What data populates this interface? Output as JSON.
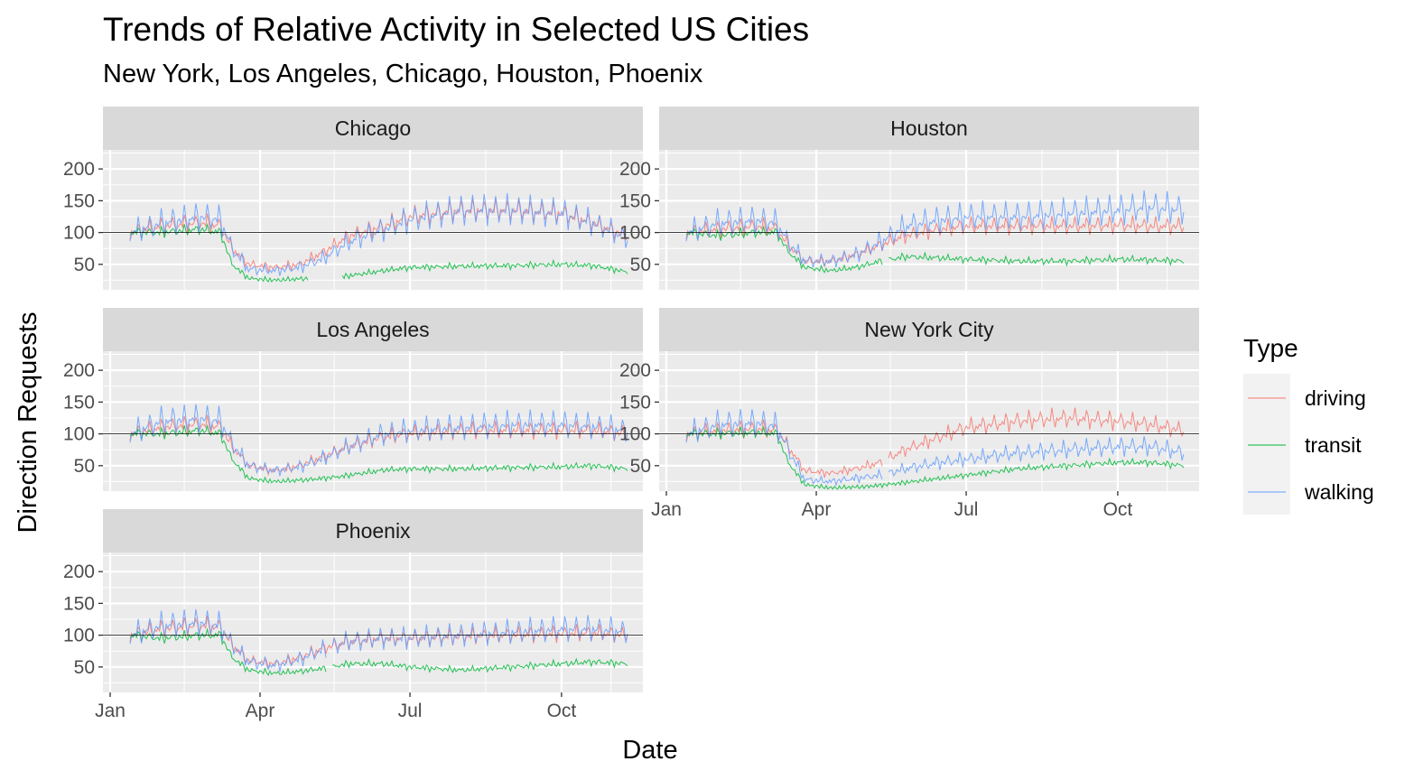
{
  "title": "Trends of Relative Activity in Selected US Cities",
  "subtitle": "New York, Los Angeles, Chicago, Houston, Phoenix",
  "chart_data": {
    "type": "line",
    "facets": [
      "Chicago",
      "Houston",
      "Los Angeles",
      "New York City",
      "Phoenix"
    ],
    "xlabel": "Date",
    "ylabel": "Direction Requests",
    "x_ticks": [
      "Jan",
      "Apr",
      "Jul",
      "Oct"
    ],
    "y_ticks": [
      50,
      100,
      150,
      200
    ],
    "ylim": [
      10,
      230
    ],
    "xlim": [
      "2020-01-01",
      "2020-11-15"
    ],
    "reference_line": 100,
    "legend": {
      "title": "Type",
      "position": "right",
      "entries": [
        "driving",
        "transit",
        "walking"
      ]
    },
    "colors": {
      "driving": "#F8766D",
      "transit": "#00BA38",
      "walking": "#619CFF"
    },
    "grid": true,
    "panel_background": "#EBEBEB",
    "strip_background": "#D9D9D9",
    "weekly_oscillation": true,
    "series_by_city": {
      "Chicago": {
        "driving": [
          [
            "2020-01-13",
            100
          ],
          [
            "2020-02-01",
            110
          ],
          [
            "2020-02-25",
            115
          ],
          [
            "2020-03-08",
            110
          ],
          [
            "2020-03-15",
            75
          ],
          [
            "2020-03-25",
            50
          ],
          [
            "2020-04-10",
            45
          ],
          [
            "2020-04-25",
            50
          ],
          [
            "2020-05-10",
            70
          ],
          [
            "2020-05-25",
            95
          ],
          [
            "2020-06-15",
            110
          ],
          [
            "2020-07-01",
            125
          ],
          [
            "2020-08-01",
            135
          ],
          [
            "2020-09-01",
            135
          ],
          [
            "2020-10-01",
            130
          ],
          [
            "2020-10-20",
            115
          ],
          [
            "2020-11-10",
            95
          ]
        ],
        "transit": [
          [
            "2020-01-13",
            100
          ],
          [
            "2020-02-01",
            100
          ],
          [
            "2020-02-25",
            105
          ],
          [
            "2020-03-08",
            100
          ],
          [
            "2020-03-15",
            50
          ],
          [
            "2020-03-25",
            28
          ],
          [
            "2020-04-10",
            25
          ],
          [
            "2020-05-01",
            28
          ],
          [
            "2020-05-20",
            30
          ],
          [
            "2020-06-15",
            40
          ],
          [
            "2020-07-01",
            45
          ],
          [
            "2020-08-01",
            47
          ],
          [
            "2020-09-01",
            48
          ],
          [
            "2020-10-01",
            50
          ],
          [
            "2020-10-20",
            48
          ],
          [
            "2020-11-10",
            38
          ]
        ],
        "walking": [
          [
            "2020-01-13",
            100
          ],
          [
            "2020-02-01",
            115
          ],
          [
            "2020-02-25",
            125
          ],
          [
            "2020-03-08",
            120
          ],
          [
            "2020-03-15",
            75
          ],
          [
            "2020-03-25",
            42
          ],
          [
            "2020-04-10",
            40
          ],
          [
            "2020-04-25",
            45
          ],
          [
            "2020-05-10",
            60
          ],
          [
            "2020-05-25",
            85
          ],
          [
            "2020-06-15",
            105
          ],
          [
            "2020-07-01",
            120
          ],
          [
            "2020-08-01",
            135
          ],
          [
            "2020-09-01",
            135
          ],
          [
            "2020-10-01",
            130
          ],
          [
            "2020-10-20",
            115
          ],
          [
            "2020-11-10",
            90
          ]
        ]
      },
      "Houston": {
        "driving": [
          [
            "2020-01-13",
            100
          ],
          [
            "2020-02-01",
            105
          ],
          [
            "2020-02-25",
            110
          ],
          [
            "2020-03-08",
            105
          ],
          [
            "2020-03-15",
            80
          ],
          [
            "2020-03-25",
            55
          ],
          [
            "2020-04-10",
            55
          ],
          [
            "2020-04-25",
            65
          ],
          [
            "2020-05-10",
            80
          ],
          [
            "2020-05-25",
            95
          ],
          [
            "2020-06-15",
            105
          ],
          [
            "2020-07-01",
            110
          ],
          [
            "2020-08-01",
            110
          ],
          [
            "2020-09-01",
            110
          ],
          [
            "2020-10-01",
            112
          ],
          [
            "2020-10-20",
            110
          ],
          [
            "2020-11-10",
            110
          ]
        ],
        "transit": [
          [
            "2020-01-13",
            100
          ],
          [
            "2020-02-01",
            95
          ],
          [
            "2020-02-25",
            100
          ],
          [
            "2020-03-08",
            100
          ],
          [
            "2020-03-15",
            70
          ],
          [
            "2020-03-25",
            45
          ],
          [
            "2020-04-10",
            40
          ],
          [
            "2020-04-25",
            45
          ],
          [
            "2020-05-10",
            55
          ],
          [
            "2020-05-25",
            62
          ],
          [
            "2020-06-15",
            60
          ],
          [
            "2020-07-01",
            58
          ],
          [
            "2020-08-01",
            55
          ],
          [
            "2020-09-01",
            55
          ],
          [
            "2020-10-01",
            58
          ],
          [
            "2020-10-20",
            57
          ],
          [
            "2020-11-10",
            55
          ]
        ],
        "walking": [
          [
            "2020-01-13",
            100
          ],
          [
            "2020-02-01",
            115
          ],
          [
            "2020-02-25",
            120
          ],
          [
            "2020-03-08",
            115
          ],
          [
            "2020-03-15",
            85
          ],
          [
            "2020-03-25",
            55
          ],
          [
            "2020-04-10",
            55
          ],
          [
            "2020-04-25",
            65
          ],
          [
            "2020-05-10",
            85
          ],
          [
            "2020-05-25",
            110
          ],
          [
            "2020-06-15",
            120
          ],
          [
            "2020-07-01",
            125
          ],
          [
            "2020-08-01",
            125
          ],
          [
            "2020-09-01",
            130
          ],
          [
            "2020-10-01",
            135
          ],
          [
            "2020-10-20",
            140
          ],
          [
            "2020-11-10",
            135
          ]
        ]
      },
      "Los Angeles": {
        "driving": [
          [
            "2020-01-13",
            100
          ],
          [
            "2020-02-01",
            110
          ],
          [
            "2020-02-25",
            115
          ],
          [
            "2020-03-08",
            110
          ],
          [
            "2020-03-15",
            80
          ],
          [
            "2020-03-25",
            50
          ],
          [
            "2020-04-10",
            42
          ],
          [
            "2020-04-25",
            50
          ],
          [
            "2020-05-10",
            65
          ],
          [
            "2020-05-25",
            80
          ],
          [
            "2020-06-15",
            95
          ],
          [
            "2020-07-01",
            100
          ],
          [
            "2020-08-01",
            105
          ],
          [
            "2020-09-01",
            105
          ],
          [
            "2020-10-01",
            105
          ],
          [
            "2020-10-20",
            105
          ],
          [
            "2020-11-10",
            100
          ]
        ],
        "transit": [
          [
            "2020-01-13",
            100
          ],
          [
            "2020-02-01",
            100
          ],
          [
            "2020-02-25",
            105
          ],
          [
            "2020-03-08",
            100
          ],
          [
            "2020-03-15",
            60
          ],
          [
            "2020-03-25",
            30
          ],
          [
            "2020-04-10",
            25
          ],
          [
            "2020-05-01",
            28
          ],
          [
            "2020-05-20",
            33
          ],
          [
            "2020-06-15",
            43
          ],
          [
            "2020-07-01",
            45
          ],
          [
            "2020-08-01",
            45
          ],
          [
            "2020-09-01",
            47
          ],
          [
            "2020-10-01",
            48
          ],
          [
            "2020-10-20",
            50
          ],
          [
            "2020-11-10",
            45
          ]
        ],
        "walking": [
          [
            "2020-01-13",
            100
          ],
          [
            "2020-02-01",
            120
          ],
          [
            "2020-02-25",
            125
          ],
          [
            "2020-03-08",
            120
          ],
          [
            "2020-03-15",
            85
          ],
          [
            "2020-03-25",
            50
          ],
          [
            "2020-04-10",
            42
          ],
          [
            "2020-04-25",
            48
          ],
          [
            "2020-05-10",
            62
          ],
          [
            "2020-05-25",
            80
          ],
          [
            "2020-06-15",
            100
          ],
          [
            "2020-07-01",
            105
          ],
          [
            "2020-08-01",
            110
          ],
          [
            "2020-09-01",
            115
          ],
          [
            "2020-10-01",
            115
          ],
          [
            "2020-10-20",
            112
          ],
          [
            "2020-11-10",
            105
          ]
        ]
      },
      "New York City": {
        "driving": [
          [
            "2020-01-13",
            100
          ],
          [
            "2020-02-01",
            105
          ],
          [
            "2020-02-25",
            108
          ],
          [
            "2020-03-08",
            105
          ],
          [
            "2020-03-15",
            80
          ],
          [
            "2020-03-25",
            42
          ],
          [
            "2020-04-10",
            38
          ],
          [
            "2020-04-25",
            45
          ],
          [
            "2020-05-10",
            55
          ],
          [
            "2020-05-25",
            75
          ],
          [
            "2020-06-15",
            95
          ],
          [
            "2020-07-01",
            110
          ],
          [
            "2020-08-01",
            120
          ],
          [
            "2020-09-01",
            125
          ],
          [
            "2020-10-01",
            120
          ],
          [
            "2020-10-20",
            115
          ],
          [
            "2020-11-10",
            105
          ]
        ],
        "transit": [
          [
            "2020-01-13",
            100
          ],
          [
            "2020-02-01",
            100
          ],
          [
            "2020-02-25",
            102
          ],
          [
            "2020-03-08",
            100
          ],
          [
            "2020-03-15",
            55
          ],
          [
            "2020-03-25",
            20
          ],
          [
            "2020-04-10",
            15
          ],
          [
            "2020-05-01",
            17
          ],
          [
            "2020-05-20",
            22
          ],
          [
            "2020-06-15",
            30
          ],
          [
            "2020-07-01",
            35
          ],
          [
            "2020-08-01",
            45
          ],
          [
            "2020-09-01",
            50
          ],
          [
            "2020-10-01",
            55
          ],
          [
            "2020-10-20",
            55
          ],
          [
            "2020-11-10",
            50
          ]
        ],
        "walking": [
          [
            "2020-01-13",
            100
          ],
          [
            "2020-02-01",
            115
          ],
          [
            "2020-02-25",
            118
          ],
          [
            "2020-03-08",
            112
          ],
          [
            "2020-03-15",
            75
          ],
          [
            "2020-03-25",
            28
          ],
          [
            "2020-04-10",
            25
          ],
          [
            "2020-04-25",
            30
          ],
          [
            "2020-05-10",
            35
          ],
          [
            "2020-05-25",
            45
          ],
          [
            "2020-06-15",
            55
          ],
          [
            "2020-07-01",
            60
          ],
          [
            "2020-08-01",
            70
          ],
          [
            "2020-09-01",
            75
          ],
          [
            "2020-10-01",
            80
          ],
          [
            "2020-10-20",
            80
          ],
          [
            "2020-11-10",
            70
          ]
        ]
      },
      "Phoenix": {
        "driving": [
          [
            "2020-01-13",
            100
          ],
          [
            "2020-02-01",
            110
          ],
          [
            "2020-02-25",
            115
          ],
          [
            "2020-03-08",
            112
          ],
          [
            "2020-03-15",
            85
          ],
          [
            "2020-03-25",
            60
          ],
          [
            "2020-04-10",
            55
          ],
          [
            "2020-04-25",
            65
          ],
          [
            "2020-05-10",
            80
          ],
          [
            "2020-05-25",
            90
          ],
          [
            "2020-06-15",
            95
          ],
          [
            "2020-07-01",
            95
          ],
          [
            "2020-08-01",
            98
          ],
          [
            "2020-09-01",
            100
          ],
          [
            "2020-10-01",
            102
          ],
          [
            "2020-10-20",
            103
          ],
          [
            "2020-11-10",
            100
          ]
        ],
        "transit": [
          [
            "2020-01-13",
            100
          ],
          [
            "2020-02-01",
            95
          ],
          [
            "2020-02-25",
            100
          ],
          [
            "2020-03-08",
            100
          ],
          [
            "2020-03-15",
            65
          ],
          [
            "2020-03-25",
            45
          ],
          [
            "2020-04-10",
            40
          ],
          [
            "2020-04-25",
            43
          ],
          [
            "2020-05-10",
            48
          ],
          [
            "2020-05-25",
            55
          ],
          [
            "2020-06-15",
            55
          ],
          [
            "2020-07-01",
            50
          ],
          [
            "2020-08-01",
            45
          ],
          [
            "2020-09-01",
            50
          ],
          [
            "2020-10-01",
            55
          ],
          [
            "2020-10-20",
            58
          ],
          [
            "2020-11-10",
            55
          ]
        ],
        "walking": [
          [
            "2020-01-13",
            100
          ],
          [
            "2020-02-01",
            115
          ],
          [
            "2020-02-25",
            120
          ],
          [
            "2020-03-08",
            115
          ],
          [
            "2020-03-15",
            85
          ],
          [
            "2020-03-25",
            58
          ],
          [
            "2020-04-10",
            52
          ],
          [
            "2020-04-25",
            62
          ],
          [
            "2020-05-10",
            78
          ],
          [
            "2020-05-25",
            90
          ],
          [
            "2020-06-15",
            95
          ],
          [
            "2020-07-01",
            95
          ],
          [
            "2020-08-01",
            100
          ],
          [
            "2020-09-01",
            105
          ],
          [
            "2020-10-01",
            110
          ],
          [
            "2020-10-20",
            110
          ],
          [
            "2020-11-10",
            105
          ]
        ]
      }
    },
    "series_gaps": {
      "Chicago": {
        "transit": [
          "2020-05-01",
          "2020-05-20"
        ]
      },
      "Houston": {
        "transit": [
          "2020-05-12",
          "2020-05-14"
        ]
      },
      "New York City": {
        "driving": [
          "2020-05-12",
          "2020-05-14"
        ],
        "walking": [
          "2020-05-12",
          "2020-05-14"
        ]
      },
      "Phoenix": {
        "transit": [
          "2020-05-12",
          "2020-05-14"
        ],
        "walking": [
          "2020-05-12",
          "2020-05-14"
        ]
      }
    }
  }
}
